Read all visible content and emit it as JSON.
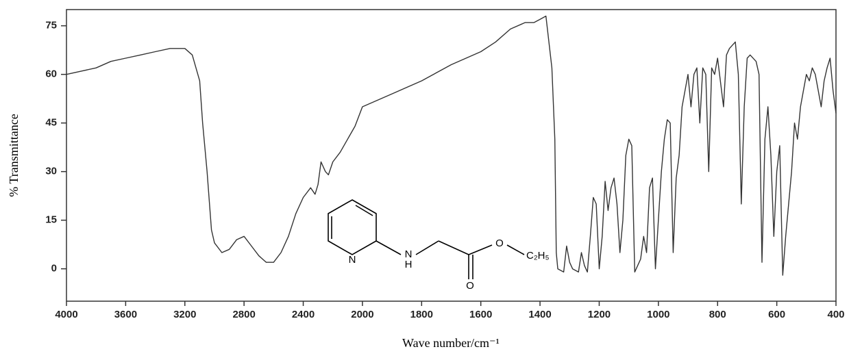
{
  "chart_data": {
    "type": "line",
    "ylabel": "% Transmittance",
    "xlabel": "Wave number/cm⁻¹",
    "color": "#333333",
    "xlim": [
      4000,
      400
    ],
    "xbreak": 2000,
    "ylim": [
      -10,
      80
    ],
    "xticks": [
      4000,
      3600,
      3200,
      2800,
      2400,
      2000,
      1800,
      1600,
      1400,
      1200,
      1000,
      800,
      600,
      400
    ],
    "yticks": [
      0,
      15,
      30,
      45,
      60,
      75
    ],
    "annotations": [
      "N",
      "N",
      "H",
      "O",
      "O",
      "C₂H₅"
    ],
    "x": [
      4000,
      3900,
      3800,
      3700,
      3600,
      3500,
      3400,
      3300,
      3200,
      3150,
      3100,
      3080,
      3050,
      3020,
      3000,
      2950,
      2900,
      2850,
      2800,
      2750,
      2700,
      2650,
      2600,
      2550,
      2500,
      2450,
      2400,
      2350,
      2320,
      2300,
      2280,
      2250,
      2230,
      2200,
      2150,
      2100,
      2050,
      2000,
      1900,
      1800,
      1700,
      1650,
      1600,
      1550,
      1500,
      1450,
      1420,
      1400,
      1380,
      1360,
      1350,
      1345,
      1340,
      1320,
      1310,
      1300,
      1290,
      1270,
      1260,
      1250,
      1240,
      1230,
      1220,
      1210,
      1200,
      1190,
      1180,
      1170,
      1160,
      1150,
      1140,
      1130,
      1120,
      1110,
      1100,
      1090,
      1080,
      1060,
      1050,
      1040,
      1030,
      1020,
      1010,
      1000,
      990,
      980,
      970,
      960,
      950,
      940,
      930,
      920,
      900,
      890,
      880,
      870,
      860,
      850,
      840,
      830,
      820,
      810,
      800,
      780,
      770,
      760,
      740,
      730,
      720,
      710,
      700,
      690,
      670,
      660,
      650,
      640,
      630,
      620,
      610,
      600,
      590,
      580,
      570,
      560,
      550,
      540,
      530,
      520,
      510,
      500,
      490,
      480,
      470,
      460,
      450,
      440,
      430,
      420,
      410,
      400
    ],
    "values": [
      60,
      61,
      62,
      64,
      65,
      66,
      67,
      68,
      68,
      66,
      58,
      45,
      30,
      12,
      8,
      5,
      6,
      9,
      10,
      7,
      4,
      2,
      2,
      5,
      10,
      17,
      22,
      25,
      23,
      26,
      33,
      30,
      29,
      33,
      36,
      40,
      44,
      50,
      54,
      58,
      63,
      65,
      67,
      70,
      74,
      76,
      76,
      77,
      78,
      62,
      40,
      5,
      0,
      -1,
      7,
      2,
      0,
      -1,
      5,
      1,
      -1,
      10,
      22,
      20,
      0,
      10,
      27,
      18,
      25,
      28,
      20,
      5,
      15,
      35,
      40,
      38,
      -1,
      3,
      10,
      5,
      25,
      28,
      0,
      15,
      30,
      40,
      46,
      45,
      5,
      28,
      35,
      50,
      60,
      50,
      60,
      62,
      45,
      62,
      60,
      30,
      62,
      60,
      65,
      50,
      66,
      68,
      70,
      60,
      20,
      50,
      65,
      66,
      64,
      60,
      2,
      40,
      50,
      35,
      10,
      30,
      38,
      -2,
      10,
      20,
      30,
      45,
      40,
      50,
      55,
      60,
      58,
      62,
      60,
      55,
      50,
      58,
      62,
      65,
      55,
      48
    ]
  }
}
